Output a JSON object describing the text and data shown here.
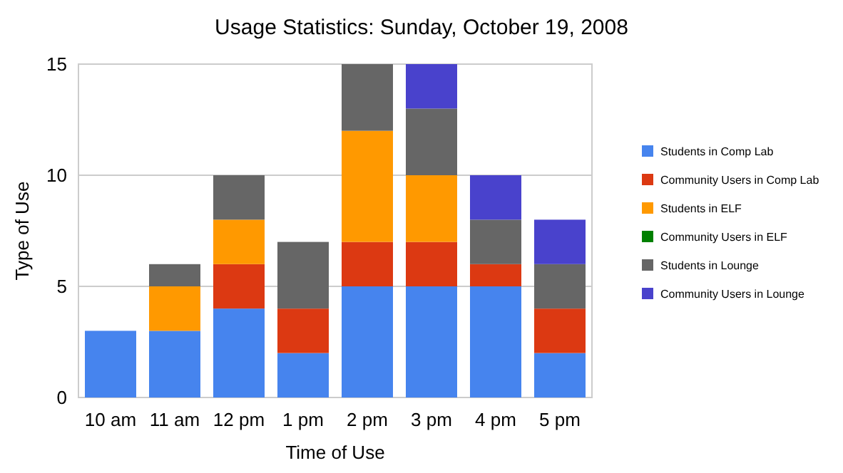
{
  "chart_data": {
    "type": "bar",
    "title": "Usage Statistics: Sunday, October 19, 2008",
    "xlabel": "Time of Use",
    "ylabel": "Type of Use",
    "categories": [
      "10 am",
      "11 am",
      "12 pm",
      "1 pm",
      "2 pm",
      "3 pm",
      "4 pm",
      "5 pm"
    ],
    "stacked": true,
    "ylim": [
      0,
      15
    ],
    "yticks": [
      0,
      5,
      10,
      15
    ],
    "grid": "y",
    "legend": "right",
    "series": [
      {
        "name": "Students in Comp Lab",
        "color": "#4684ee",
        "values": [
          3,
          3,
          4,
          2,
          5,
          5,
          5,
          2
        ]
      },
      {
        "name": "Community Users in Comp Lab",
        "color": "#dc3912",
        "values": [
          0,
          0,
          2,
          2,
          2,
          2,
          1,
          2
        ]
      },
      {
        "name": "Students in ELF",
        "color": "#ff9900",
        "values": [
          0,
          2,
          2,
          0,
          5,
          3,
          0,
          0
        ]
      },
      {
        "name": "Community Users in ELF",
        "color": "#008000",
        "values": [
          0,
          0,
          0,
          0,
          0,
          0,
          0,
          0
        ]
      },
      {
        "name": "Students in Lounge",
        "color": "#666666",
        "values": [
          0,
          1,
          2,
          3,
          3,
          3,
          2,
          2
        ]
      },
      {
        "name": "Community Users in Lounge",
        "color": "#4942cc",
        "values": [
          0,
          0,
          0,
          0,
          0,
          2,
          2,
          2
        ]
      }
    ]
  }
}
